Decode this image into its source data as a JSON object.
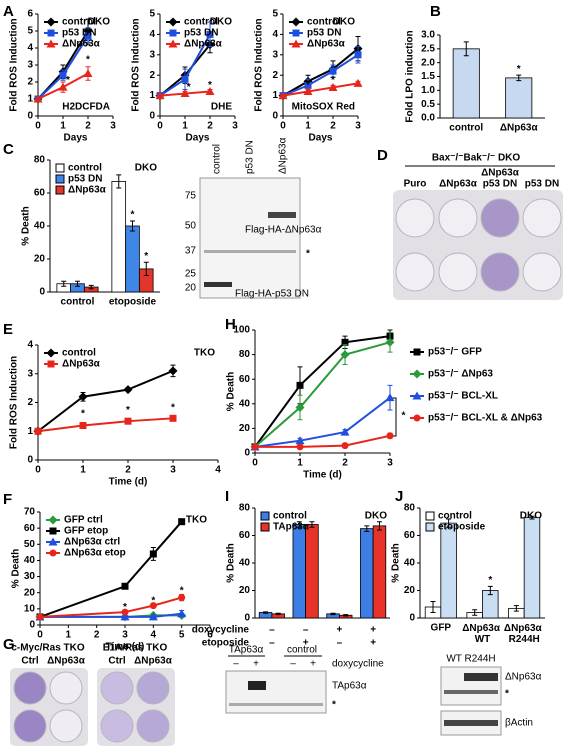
{
  "chart_data": [
    {
      "type": "line",
      "panel": "A",
      "tag": "DKO",
      "note": "H2DCFDA",
      "ylabel": "Fold ROS Induction",
      "xlabel": "Days",
      "legend": "upper left",
      "x": [
        0,
        1,
        2
      ],
      "xlim": [
        0,
        3
      ],
      "xticks": [
        0,
        1,
        2,
        3
      ],
      "ylim": [
        0,
        6
      ],
      "yticks": [
        0,
        1,
        2,
        3,
        4,
        5,
        6
      ],
      "series": [
        {
          "name": "control",
          "color": "#000000",
          "marker": "diamond",
          "values": [
            1,
            2.6,
            5.0
          ],
          "errors": [
            0,
            0.4,
            0.7
          ]
        },
        {
          "name": "p53 DN",
          "color": "#1f4fe0",
          "marker": "square",
          "values": [
            1,
            2.4,
            4.7
          ],
          "errors": [
            0,
            0.3,
            0.5
          ]
        },
        {
          "name": "ΔNp63α",
          "color": "#e8251b",
          "marker": "triangle",
          "values": [
            1,
            1.7,
            2.5
          ],
          "errors": [
            0,
            0.3,
            0.4
          ]
        }
      ],
      "annotations": [
        {
          "text": "*",
          "x": 1.2,
          "y": 2.1
        },
        {
          "text": "*",
          "x": 2,
          "y": 3.3
        }
      ]
    },
    {
      "type": "line",
      "tag": "DKO",
      "note": "DHE",
      "ylabel": "Fold ROS Induction",
      "xlabel": "Days",
      "legend": "upper left",
      "x": [
        0,
        1,
        2
      ],
      "xlim": [
        0,
        3
      ],
      "xticks": [
        0,
        1,
        2,
        3
      ],
      "ylim": [
        0,
        5
      ],
      "yticks": [
        0,
        1,
        2,
        3,
        4,
        5
      ],
      "series": [
        {
          "name": "control",
          "color": "#000000",
          "marker": "diamond",
          "values": [
            1,
            2.0,
            3.5
          ],
          "errors": [
            0,
            0.4,
            0.4
          ]
        },
        {
          "name": "p53 DN",
          "color": "#1f4fe0",
          "marker": "square",
          "values": [
            1,
            1.8,
            4.0
          ],
          "errors": [
            0,
            0.5,
            0.6
          ]
        },
        {
          "name": "ΔNp63α",
          "color": "#e8251b",
          "marker": "triangle",
          "values": [
            1,
            1.1,
            1.2
          ],
          "errors": [
            0,
            0.1,
            0.1
          ]
        }
      ],
      "annotations": [
        {
          "text": "*",
          "x": 1.15,
          "y": 1.4
        },
        {
          "text": "*",
          "x": 2,
          "y": 1.5
        }
      ]
    },
    {
      "type": "line",
      "tag": "DKO",
      "note": "MitoSOX Red",
      "ylabel": "Fold ROS Induction",
      "xlabel": "Days",
      "legend": "upper left",
      "x": [
        0,
        1,
        2,
        3
      ],
      "xlim": [
        0,
        3
      ],
      "xticks": [
        0,
        1,
        2,
        3
      ],
      "ylim": [
        0,
        5
      ],
      "yticks": [
        0,
        1,
        2,
        3,
        4,
        5
      ],
      "series": [
        {
          "name": "control",
          "color": "#000000",
          "marker": "diamond",
          "values": [
            1,
            1.7,
            2.3,
            3.3
          ],
          "errors": [
            0,
            0.3,
            0.4,
            0.6
          ]
        },
        {
          "name": "p53 DN",
          "color": "#1f4fe0",
          "marker": "square",
          "values": [
            1,
            1.5,
            2.2,
            3.0
          ],
          "errors": [
            0,
            0.3,
            0.3,
            0.4
          ]
        },
        {
          "name": "ΔNp63α",
          "color": "#e8251b",
          "marker": "triangle",
          "values": [
            1,
            1.2,
            1.4,
            1.6
          ],
          "errors": [
            0,
            0.1,
            0.1,
            0.1
          ]
        }
      ],
      "annotations": [
        {
          "text": "*",
          "x": 1,
          "y": 1.5
        },
        {
          "text": "*",
          "x": 2,
          "y": 1.75
        }
      ]
    },
    {
      "type": "bar",
      "panel": "B",
      "ylabel": "Fold  LPO induction",
      "categories": [
        "control",
        "ΔNp63α"
      ],
      "values": [
        2.5,
        1.45
      ],
      "errors": [
        0.25,
        0.1
      ],
      "color": "#c6d9f1",
      "ylim": [
        0,
        3
      ],
      "yticks": [
        {
          "value": 0,
          "label": "0.0"
        },
        {
          "value": 0.5,
          "label": "0.5"
        },
        {
          "value": 1,
          "label": "1.0"
        },
        {
          "value": 1.5,
          "label": "1.5"
        },
        {
          "value": 2,
          "label": "2.0"
        },
        {
          "value": 2.5,
          "label": "2.5"
        },
        {
          "value": 3,
          "label": "3.0"
        }
      ],
      "annotations": [
        {
          "text": "*",
          "category": 1
        }
      ]
    },
    {
      "type": "bar",
      "panel": "C",
      "tag": "DKO",
      "ylabel": "% Death",
      "legend": "upper left",
      "categories": [
        "control",
        "etoposide"
      ],
      "ylim": [
        0,
        80
      ],
      "yticks": [
        0,
        20,
        40,
        60,
        80
      ],
      "series": [
        {
          "name": "control",
          "color": "#ffffff",
          "values": [
            5,
            67
          ],
          "errors": [
            1.5,
            4
          ]
        },
        {
          "name": "p53 DN",
          "color": "#3f87e6",
          "values": [
            5,
            40
          ],
          "errors": [
            1.5,
            3
          ]
        },
        {
          "name": "ΔNp63α",
          "color": "#e3362a",
          "values": [
            3,
            14
          ],
          "errors": [
            1,
            4
          ]
        }
      ],
      "annotations": [
        {
          "text": "*",
          "category": 1,
          "series": 1
        },
        {
          "text": "*",
          "category": 1,
          "series": 2
        }
      ]
    },
    {
      "type": "line",
      "panel": "E",
      "tag": "TKO",
      "ylabel": "Fold ROS Induction",
      "xlabel": "Time (d)",
      "legend": "upper left",
      "x": [
        0,
        1,
        2,
        3
      ],
      "xlim": [
        0,
        4
      ],
      "xticks": [
        0,
        1,
        2,
        3,
        4
      ],
      "ylim": [
        0,
        4
      ],
      "yticks": [
        0,
        1,
        2,
        3,
        4
      ],
      "series": [
        {
          "name": "control",
          "color": "#000000",
          "marker": "diamond",
          "values": [
            1,
            2.2,
            2.45,
            3.1
          ],
          "errors": [
            0,
            0.15,
            0.05,
            0.2
          ]
        },
        {
          "name": "ΔNp63α",
          "color": "#e8251b",
          "marker": "square",
          "values": [
            1,
            1.2,
            1.35,
            1.45
          ],
          "errors": [
            0,
            0.08,
            0.08,
            0.08
          ]
        }
      ],
      "annotations": [
        {
          "text": "*",
          "x": 1,
          "y": 1.6
        },
        {
          "text": "*",
          "x": 2,
          "y": 1.72
        },
        {
          "text": "*",
          "x": 3,
          "y": 1.82
        }
      ]
    },
    {
      "type": "line",
      "panel": "H",
      "ylabel": "% Death",
      "xlabel": "Time (d)",
      "legend": "right",
      "x": [
        0,
        1,
        2,
        3
      ],
      "xlim": [
        0,
        3
      ],
      "xticks": [
        0,
        1,
        2,
        3
      ],
      "ylim": [
        0,
        100
      ],
      "yticks": [
        0,
        20,
        40,
        60,
        80,
        100
      ],
      "series": [
        {
          "name": "p53⁻/⁻ GFP",
          "color": "#000000",
          "marker": "square",
          "values": [
            5,
            55,
            90,
            95
          ],
          "errors": [
            0,
            15,
            5,
            5
          ]
        },
        {
          "name": "p53⁻/⁻ ΔNp63",
          "color": "#2a9a3a",
          "marker": "diamond",
          "values": [
            5,
            37,
            80,
            90
          ],
          "errors": [
            0,
            10,
            8,
            8
          ]
        },
        {
          "name": "p53⁻/⁻ BCL-XL",
          "color": "#1f4fe0",
          "marker": "triangle",
          "values": [
            5,
            10,
            17,
            45
          ],
          "errors": [
            0,
            2,
            2,
            10
          ]
        },
        {
          "name": "p53⁻/⁻ BCL-XL & ΔNp63",
          "color": "#e8251b",
          "marker": "circle",
          "values": [
            5,
            5,
            6,
            14
          ],
          "errors": [
            0,
            1,
            1,
            2
          ]
        }
      ],
      "annotations": [
        {
          "text": "*",
          "x": 3.3,
          "y": 30
        }
      ]
    },
    {
      "type": "line",
      "panel": "F",
      "tag": "TKO",
      "ylabel": "% Death",
      "xlabel": "Time (d)",
      "legend": "upper left",
      "x": [
        0,
        3,
        4,
        5
      ],
      "xlim": [
        0,
        6
      ],
      "xticks": [
        0,
        1,
        2,
        3,
        4,
        5,
        6
      ],
      "ylim": [
        0,
        70
      ],
      "yticks": [
        0,
        10,
        20,
        30,
        40,
        50,
        60,
        70
      ],
      "series": [
        {
          "name": "GFP ctrl",
          "color": "#2a9a3a",
          "marker": "diamond",
          "values": [
            5,
            5,
            6,
            6
          ],
          "errors": [
            0,
            1,
            1,
            1
          ]
        },
        {
          "name": "GFP etop",
          "color": "#000000",
          "marker": "square",
          "values": [
            5,
            24,
            44,
            64
          ],
          "errors": [
            0,
            1,
            4,
            1
          ]
        },
        {
          "name": "ΔNp63α ctrl",
          "color": "#1f4fe0",
          "marker": "triangle",
          "values": [
            5,
            5,
            5,
            7
          ],
          "errors": [
            0,
            1,
            1,
            2
          ]
        },
        {
          "name": "ΔNp63α etop",
          "color": "#e8251b",
          "marker": "circle",
          "values": [
            5,
            8,
            12,
            17
          ],
          "errors": [
            0,
            1,
            1,
            2
          ]
        }
      ],
      "annotations": [
        {
          "text": "*",
          "x": 3,
          "y": 11
        },
        {
          "text": "*",
          "x": 4,
          "y": 15
        },
        {
          "text": "*",
          "x": 5,
          "y": 21
        }
      ]
    },
    {
      "type": "bar",
      "panel": "I",
      "tag": "DKO",
      "ylabel": "% Death",
      "legend": "upper left",
      "categories": [
        null,
        null,
        null,
        null
      ],
      "ylim": [
        0,
        80
      ],
      "yticks": [
        0,
        20,
        40,
        60,
        80
      ],
      "series": [
        {
          "name": "control",
          "color": "#3d7ee6",
          "values": [
            4,
            68,
            3,
            65
          ],
          "errors": [
            0.5,
            2,
            0.5,
            2
          ]
        },
        {
          "name": "TAp63α",
          "color": "#e8332a",
          "values": [
            3,
            68,
            2,
            67
          ],
          "errors": [
            0.5,
            2,
            0.5,
            3
          ]
        }
      ],
      "conditions": [
        {
          "name": "doxycycline",
          "marks": [
            "–",
            "–",
            "+",
            "+"
          ]
        },
        {
          "name": "etoposide",
          "marks": [
            "–",
            "+",
            "–",
            "+"
          ]
        }
      ]
    },
    {
      "type": "bar",
      "panel": "J",
      "tag": "DKO",
      "ylabel": "% Death",
      "legend": "upper left",
      "categories": [
        "GFP",
        "ΔNp63α WT",
        "ΔNp63α R244H"
      ],
      "ylim": [
        0,
        80
      ],
      "yticks": [
        0,
        20,
        40,
        60,
        80
      ],
      "series": [
        {
          "name": "control",
          "color": "#ffffff",
          "values": [
            8,
            4,
            7
          ],
          "errors": [
            4,
            2,
            2
          ]
        },
        {
          "name": "etoposide",
          "color": "#c9ddf3",
          "values": [
            69,
            20,
            73
          ],
          "errors": [
            3,
            3,
            1
          ]
        }
      ],
      "annotations": [
        {
          "text": "*",
          "category": 1,
          "series": 1
        }
      ]
    }
  ],
  "figure": {
    "blot_c": {
      "lanes": [
        "control",
        "p53 DN",
        "ΔNp63α"
      ],
      "markers": [
        "75",
        "50",
        "37",
        "25",
        "20"
      ],
      "bands": [
        "Flag-HA-ΔNp63α",
        "*",
        "Flag-HA-p53 DN"
      ]
    },
    "panel_d": {
      "label": "D",
      "title": "Bax⁻/⁻Bak⁻/⁻ DKO",
      "columns": [
        "Puro",
        "ΔNp63α",
        "ΔNp63α",
        "p53 DN",
        "p53 DN"
      ]
    },
    "panel_g": {
      "label": "G",
      "plates": [
        {
          "title": "c-Myc/Ras TKO",
          "columns": [
            "Ctrl",
            "ΔNp63α"
          ]
        },
        {
          "title": "E1A/Ras TKO",
          "columns": [
            "Ctrl",
            "ΔNp63α"
          ]
        }
      ],
      "blot1": {
        "groups": [
          "TAp63α",
          "control"
        ],
        "marks": [
          "–",
          "+",
          "–",
          "+"
        ],
        "row": "doxycycline",
        "bands": [
          "TAp63α",
          "*"
        ]
      },
      "blot2": {
        "lanes": "WT R244H",
        "bands": [
          "ΔNp63α",
          "*",
          "βActin"
        ]
      }
    }
  }
}
